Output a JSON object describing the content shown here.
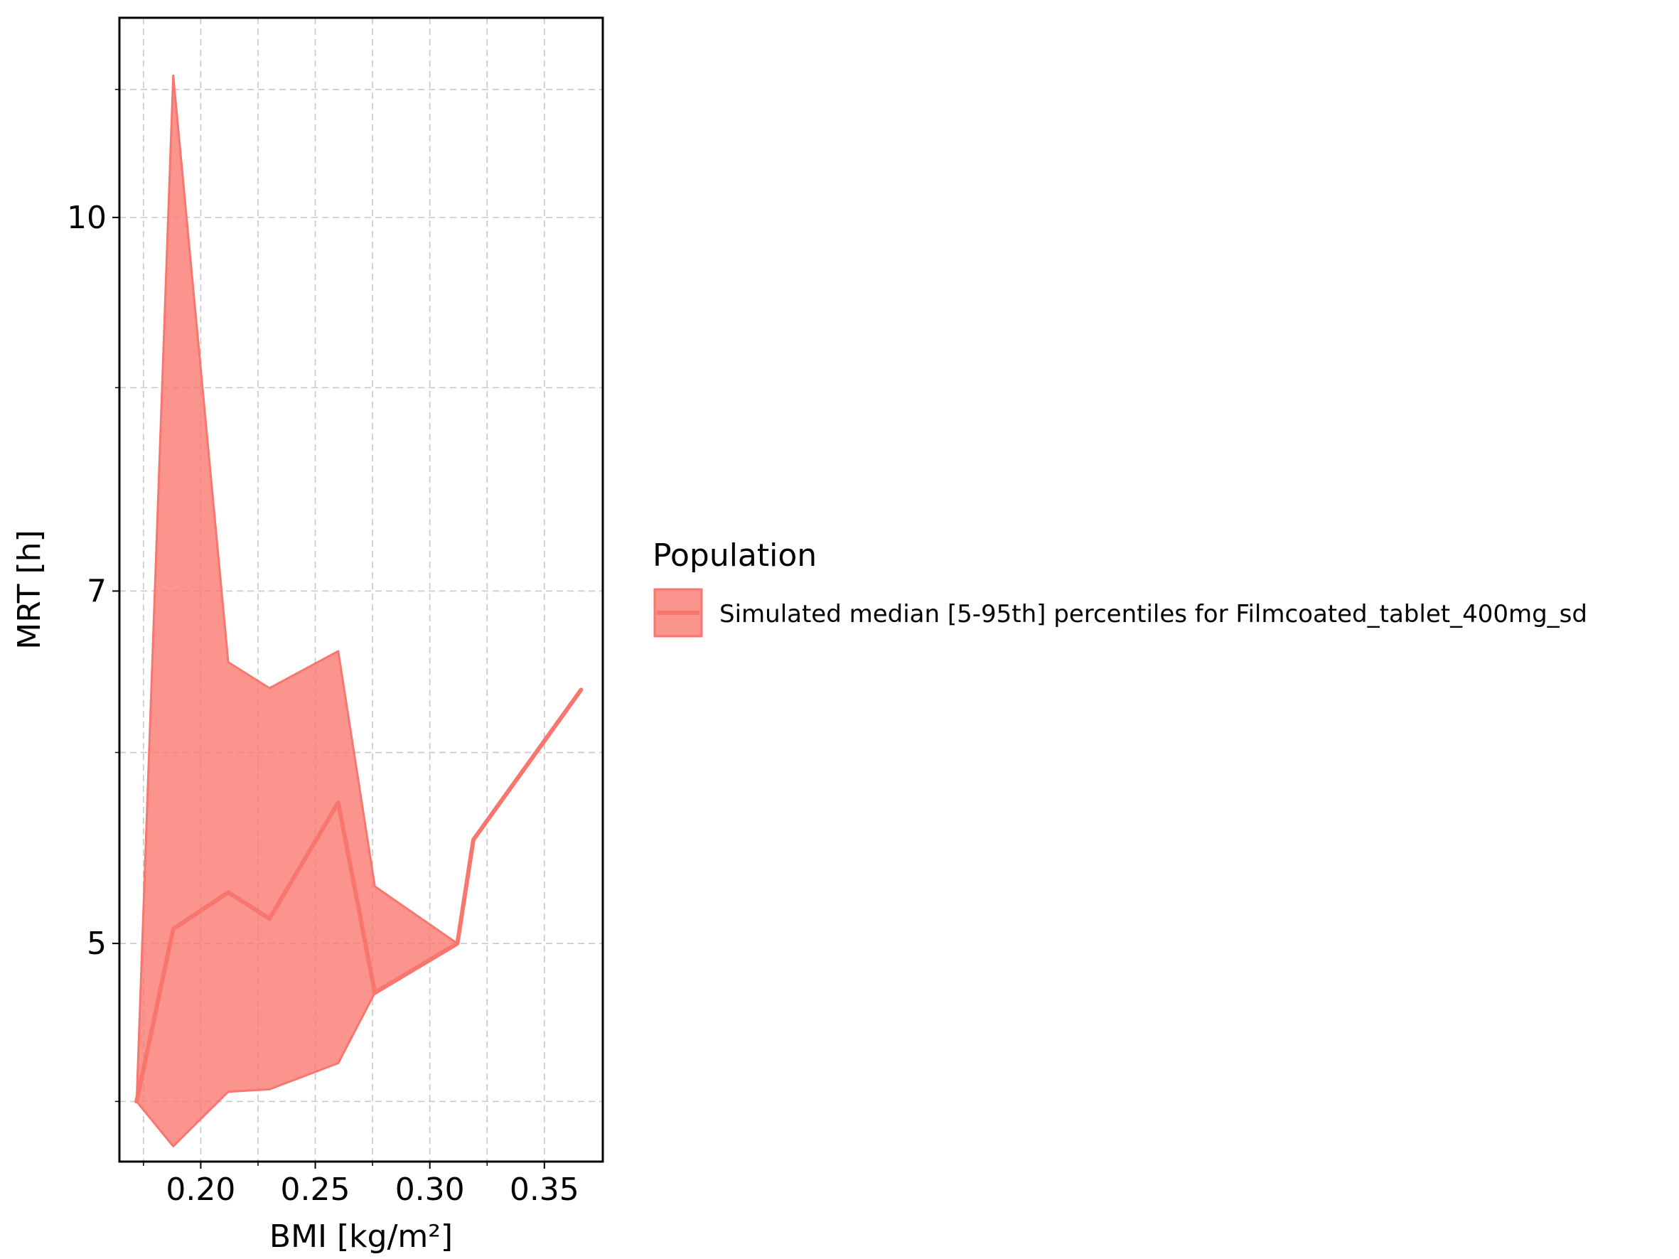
{
  "chart_data": {
    "type": "area",
    "title": "",
    "xlabel": "BMI [kg/m²]",
    "ylabel": "MRT [h]",
    "y_scale": "log",
    "xlim": [
      0.1645,
      0.3755
    ],
    "ylim": [
      4.06,
      12.1
    ],
    "x_ticks": [
      0.2,
      0.25,
      0.3,
      0.35
    ],
    "x_tick_labels": [
      "0.20",
      "0.25",
      "0.30",
      "0.35"
    ],
    "x_minor_ticks": [
      0.175,
      0.225,
      0.275,
      0.325
    ],
    "y_ticks": [
      5,
      7,
      10
    ],
    "y_tick_labels": [
      "5",
      "7",
      "10"
    ],
    "y_minor_ticks": [
      4.3,
      6,
      8.5,
      11.3
    ],
    "grid": true,
    "grid_style": "dashed",
    "legend": {
      "title": "Population",
      "position": "right",
      "entries": [
        "Simulated median [5-95th] percentiles for Filmcoated_tablet_400mg_sd"
      ]
    },
    "series": [
      {
        "name": "Simulated median [5-95th] percentiles for Filmcoated_tablet_400mg_sd",
        "color": "#F8766D",
        "x": [
          0.172,
          0.188,
          0.212,
          0.23,
          0.26,
          0.276,
          0.312,
          0.319,
          0.366
        ],
        "median": [
          4.3,
          5.07,
          5.25,
          5.12,
          5.72,
          4.77,
          5.0,
          5.52,
          6.37
        ],
        "lower": [
          4.3,
          4.12,
          4.34,
          4.35,
          4.46,
          4.77,
          5.0,
          5.52,
          6.37
        ],
        "upper": [
          4.3,
          11.45,
          6.54,
          6.38,
          6.61,
          5.28,
          5.0,
          5.52,
          6.37
        ]
      }
    ]
  }
}
